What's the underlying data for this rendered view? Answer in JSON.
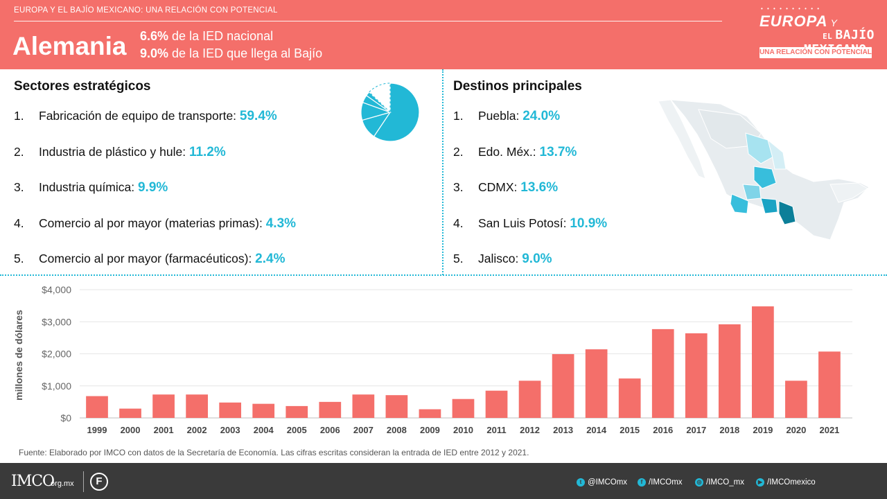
{
  "header": {
    "kicker": "EUROPA Y EL BAJÍO MEXICANO: UNA RELACIÓN CON POTENCIAL",
    "country": "Alemania",
    "stat1_value": "6.6%",
    "stat1_label": "de la IED nacional",
    "stat2_value": "9.0%",
    "stat2_label": "de la IED que llega al Bajío",
    "logo": {
      "line1": "EUROPA",
      "line1_y": "Y",
      "line2_el": "EL",
      "line2": "BAJÍO MEXICANO:",
      "line3": "UNA RELACIÓN CON POTENCIAL"
    }
  },
  "sectores": {
    "title": "Sectores estratégicos",
    "items": [
      {
        "num": "1.",
        "label": "Fabricación de equipo de transporte:",
        "pct": "59.4%"
      },
      {
        "num": "2.",
        "label": "Industria de plástico y hule:",
        "pct": "11.2%"
      },
      {
        "num": "3.",
        "label": "Industria química:",
        "pct": "9.9%"
      },
      {
        "num": "4.",
        "label": "Comercio al por mayor (materias primas):",
        "pct": "4.3%"
      },
      {
        "num": "5.",
        "label": "Comercio al por mayor (farmacéuticos):",
        "pct": "2.4%"
      }
    ],
    "pie_values": [
      59.4,
      11.2,
      9.9,
      4.3,
      2.4
    ]
  },
  "destinos": {
    "title": "Destinos principales",
    "items": [
      {
        "num": "1.",
        "label": "Puebla:",
        "pct": "24.0%"
      },
      {
        "num": "2.",
        "label": "Edo. Méx.:",
        "pct": "13.7%"
      },
      {
        "num": "3.",
        "label": "CDMX:",
        "pct": "13.6%"
      },
      {
        "num": "4.",
        "label": "San Luis Potosí:",
        "pct": "10.9%"
      },
      {
        "num": "5.",
        "label": "Jalisco:",
        "pct": "9.0%"
      }
    ]
  },
  "colors": {
    "accent": "#22b8d6",
    "bar": "#f46f6a",
    "header_bg": "#f46f6a",
    "footer_bg": "#3a3a3a"
  },
  "chart_data": {
    "type": "bar",
    "categories": [
      "1999",
      "2000",
      "2001",
      "2002",
      "2003",
      "2004",
      "2005",
      "2006",
      "2007",
      "2008",
      "2009",
      "2010",
      "2011",
      "2012",
      "2013",
      "2014",
      "2015",
      "2016",
      "2017",
      "2018",
      "2019",
      "2020",
      "2021"
    ],
    "values": [
      680,
      290,
      730,
      730,
      480,
      440,
      370,
      500,
      730,
      710,
      270,
      590,
      850,
      1160,
      1990,
      2140,
      1230,
      2770,
      2640,
      2920,
      3480,
      1160,
      2070
    ],
    "title": "",
    "xlabel": "",
    "ylabel": "millones de dólares",
    "ylim": [
      0,
      4000
    ],
    "yticks": [
      0,
      1000,
      2000,
      3000,
      4000
    ],
    "ytick_labels": [
      "$0",
      "$1,000",
      "$2,000",
      "$3,000",
      "$4,000"
    ],
    "grid": true
  },
  "source": "Fuente: Elaborado por IMCO con datos de la Secretaría de Economía. Las cifras escritas consideran la entrada de IED entre 2012 y 2021.",
  "footer": {
    "imco": "IMCO",
    "imco_domain": ".org.mx",
    "f_logo": "F",
    "social": [
      {
        "icon": "twitter-icon",
        "glyph": "t",
        "handle": "@IMCOmx"
      },
      {
        "icon": "facebook-icon",
        "glyph": "f",
        "handle": "/IMCOmx"
      },
      {
        "icon": "instagram-icon",
        "glyph": "◎",
        "handle": "/IMCO_mx"
      },
      {
        "icon": "youtube-icon",
        "glyph": "▶",
        "handle": "/IMCOmexico"
      }
    ]
  }
}
